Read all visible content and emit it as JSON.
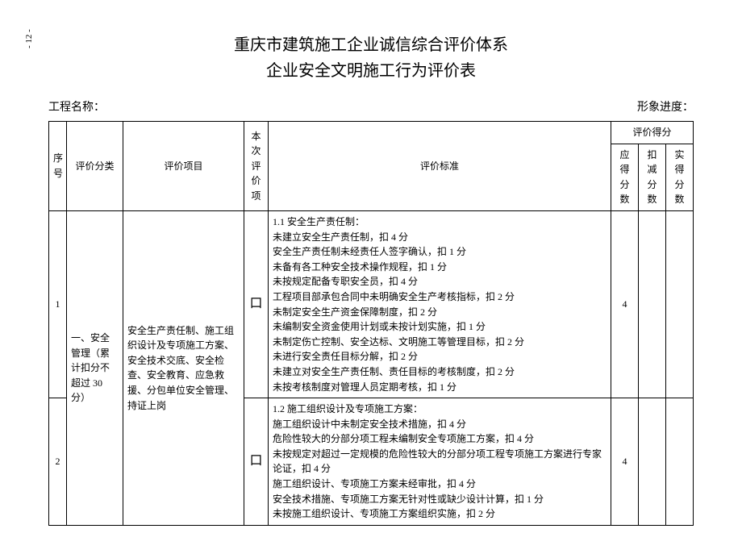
{
  "page_number": "- 12 -",
  "title1": "重庆市建筑施工企业诚信综合评价体系",
  "title2": "企业安全文明施工行为评价表",
  "label_project_name": "工程名称：",
  "label_progress": "形象进度：",
  "headers": {
    "seq": "序号",
    "category": "评价分类",
    "item": "评价项目",
    "check": "本次评价项",
    "criteria": "评价标准",
    "score_group": "评价得分",
    "score_due": "应得分数",
    "score_deduct": "扣减分数",
    "score_actual": "实得分数"
  },
  "category_text": "一、安全管理（累计扣分不超过 30 分）",
  "item_text": "安全生产责任制、施工组织设计及专项施工方案、安全技术交底、安全检查、安全教育、应急救援、分包单位安全管理、持证上岗",
  "rows": [
    {
      "seq": "1",
      "checkbox": "口",
      "criteria_title": "1.1 安全生产责任制：",
      "criteria_lines": [
        "未建立安全生产责任制，扣 4 分",
        "安全生产责任制未经责任人签字确认，扣 1 分",
        "未备有各工种安全技术操作规程，扣 1 分",
        "未按规定配备专职安全员，扣 4 分",
        "工程项目部承包合同中未明确安全生产考核指标，扣 2 分",
        "未制定安全生产资金保障制度，扣 2 分",
        "未编制安全资金使用计划或未按计划实施，扣 1 分",
        "未制定伤亡控制、安全达标、文明施工等管理目标，扣 2 分",
        "未进行安全责任目标分解，扣 2 分",
        "未建立对安全生产责任制、责任目标的考核制度，扣 2 分",
        "未按考核制度对管理人员定期考核，扣 1 分"
      ],
      "score_due": "4"
    },
    {
      "seq": "2",
      "checkbox": "口",
      "criteria_title": "1.2 施工组织设计及专项施工方案：",
      "criteria_lines": [
        "施工组织设计中未制定安全技术措施，扣 4 分",
        "危险性较大的分部分项工程未编制安全专项施工方案，扣 4 分",
        "未按规定对超过一定规模的危险性较大的分部分项工程专项施工方案进行专家论证，扣 4 分",
        "施工组织设计、专项施工方案未经审批，扣 4 分",
        "安全技术措施、专项施工方案无针对性或缺少设计计算，扣 1 分",
        "未按施工组织设计、专项施工方案组织实施，扣 2 分"
      ],
      "score_due": "4"
    }
  ]
}
